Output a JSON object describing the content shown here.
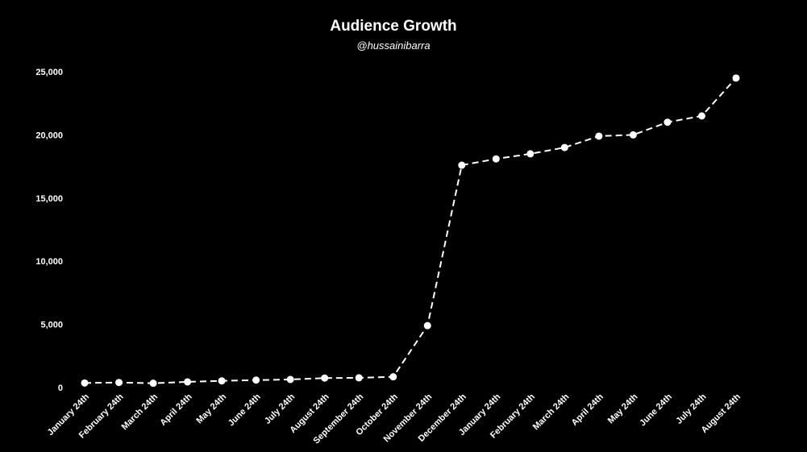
{
  "chart_data": {
    "type": "line",
    "title": "Audience Growth",
    "subtitle": "@hussainibarra",
    "xlabel": "",
    "ylabel": "",
    "categories": [
      "January 24th",
      "February 24th",
      "March 24th",
      "April 24th",
      "May 24th",
      "June 24th",
      "July 24th",
      "August 24th",
      "September 24th",
      "October 24th",
      "November 24th",
      "December 24th",
      "January 24th",
      "February 24th",
      "March 24th",
      "April 24th",
      "May 24th",
      "June 24th",
      "July 24th",
      "August 24th"
    ],
    "values": [
      360,
      400,
      340,
      450,
      530,
      590,
      640,
      750,
      770,
      850,
      4900,
      17600,
      18100,
      18500,
      19000,
      19900,
      20000,
      21000,
      21500,
      24500
    ],
    "ylim": [
      0,
      25000
    ],
    "yticks": [
      0,
      5000,
      10000,
      15000,
      20000,
      25000
    ],
    "ytick_labels": [
      "0",
      "5,000",
      "10,000",
      "15,000",
      "20,000",
      "25,000"
    ],
    "grid": false,
    "line_style": "dashed",
    "colors": {
      "background": "#000000",
      "line": "#ffffff",
      "text": "#ffffff"
    }
  }
}
